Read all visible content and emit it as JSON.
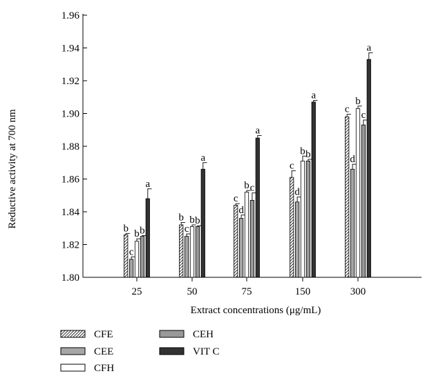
{
  "chart_data": {
    "type": "bar",
    "xlabel": "Extract concentrations (μg/mL)",
    "ylabel": "Reductive activity at 700 nm",
    "ylim": [
      1.8,
      1.96
    ],
    "yticks": [
      "1.80",
      "1.82",
      "1.84",
      "1.86",
      "1.88",
      "1.90",
      "1.92",
      "1.94",
      "1.96"
    ],
    "categories": [
      "25",
      "50",
      "75",
      "150",
      "300"
    ],
    "legend_position": "bottom-left",
    "series": [
      {
        "name": "CFE",
        "pattern": "hatched",
        "color": "#ffffff",
        "values": [
          1.826,
          1.832,
          1.844,
          1.861,
          1.898
        ],
        "errors": [
          0.0008,
          0.0015,
          0.001,
          0.004,
          0.0015
        ],
        "letters": [
          "b",
          "b",
          "c",
          "c",
          "c"
        ]
      },
      {
        "name": "CEE",
        "pattern": "solid",
        "color": "#a6a6a6",
        "values": [
          1.811,
          1.825,
          1.836,
          1.846,
          1.866
        ],
        "errors": [
          0.0015,
          0.0015,
          0.002,
          0.003,
          0.003
        ],
        "letters": [
          "c",
          "c",
          "d",
          "d",
          "d"
        ]
      },
      {
        "name": "CFH",
        "pattern": "solid",
        "color": "#ffffff",
        "values": [
          1.822,
          1.831,
          1.852,
          1.871,
          1.903
        ],
        "errors": [
          0.0015,
          0.001,
          0.001,
          0.003,
          0.0015
        ],
        "letters": [
          "b",
          "b",
          "b",
          "b",
          "b"
        ]
      },
      {
        "name": "CEH",
        "pattern": "solid",
        "color": "#999999",
        "values": [
          1.825,
          1.831,
          1.847,
          1.871,
          1.893
        ],
        "errors": [
          0.0005,
          0.0005,
          0.0045,
          0.001,
          0.003
        ],
        "letters": [
          "b",
          "b",
          "c",
          "b",
          "c"
        ]
      },
      {
        "name": "VIT C",
        "pattern": "solid",
        "color": "#333333",
        "values": [
          1.848,
          1.866,
          1.885,
          1.907,
          1.933
        ],
        "errors": [
          0.006,
          0.004,
          0.0015,
          0.001,
          0.004
        ],
        "letters": [
          "a",
          "a",
          "a",
          "a",
          "a"
        ]
      }
    ]
  }
}
